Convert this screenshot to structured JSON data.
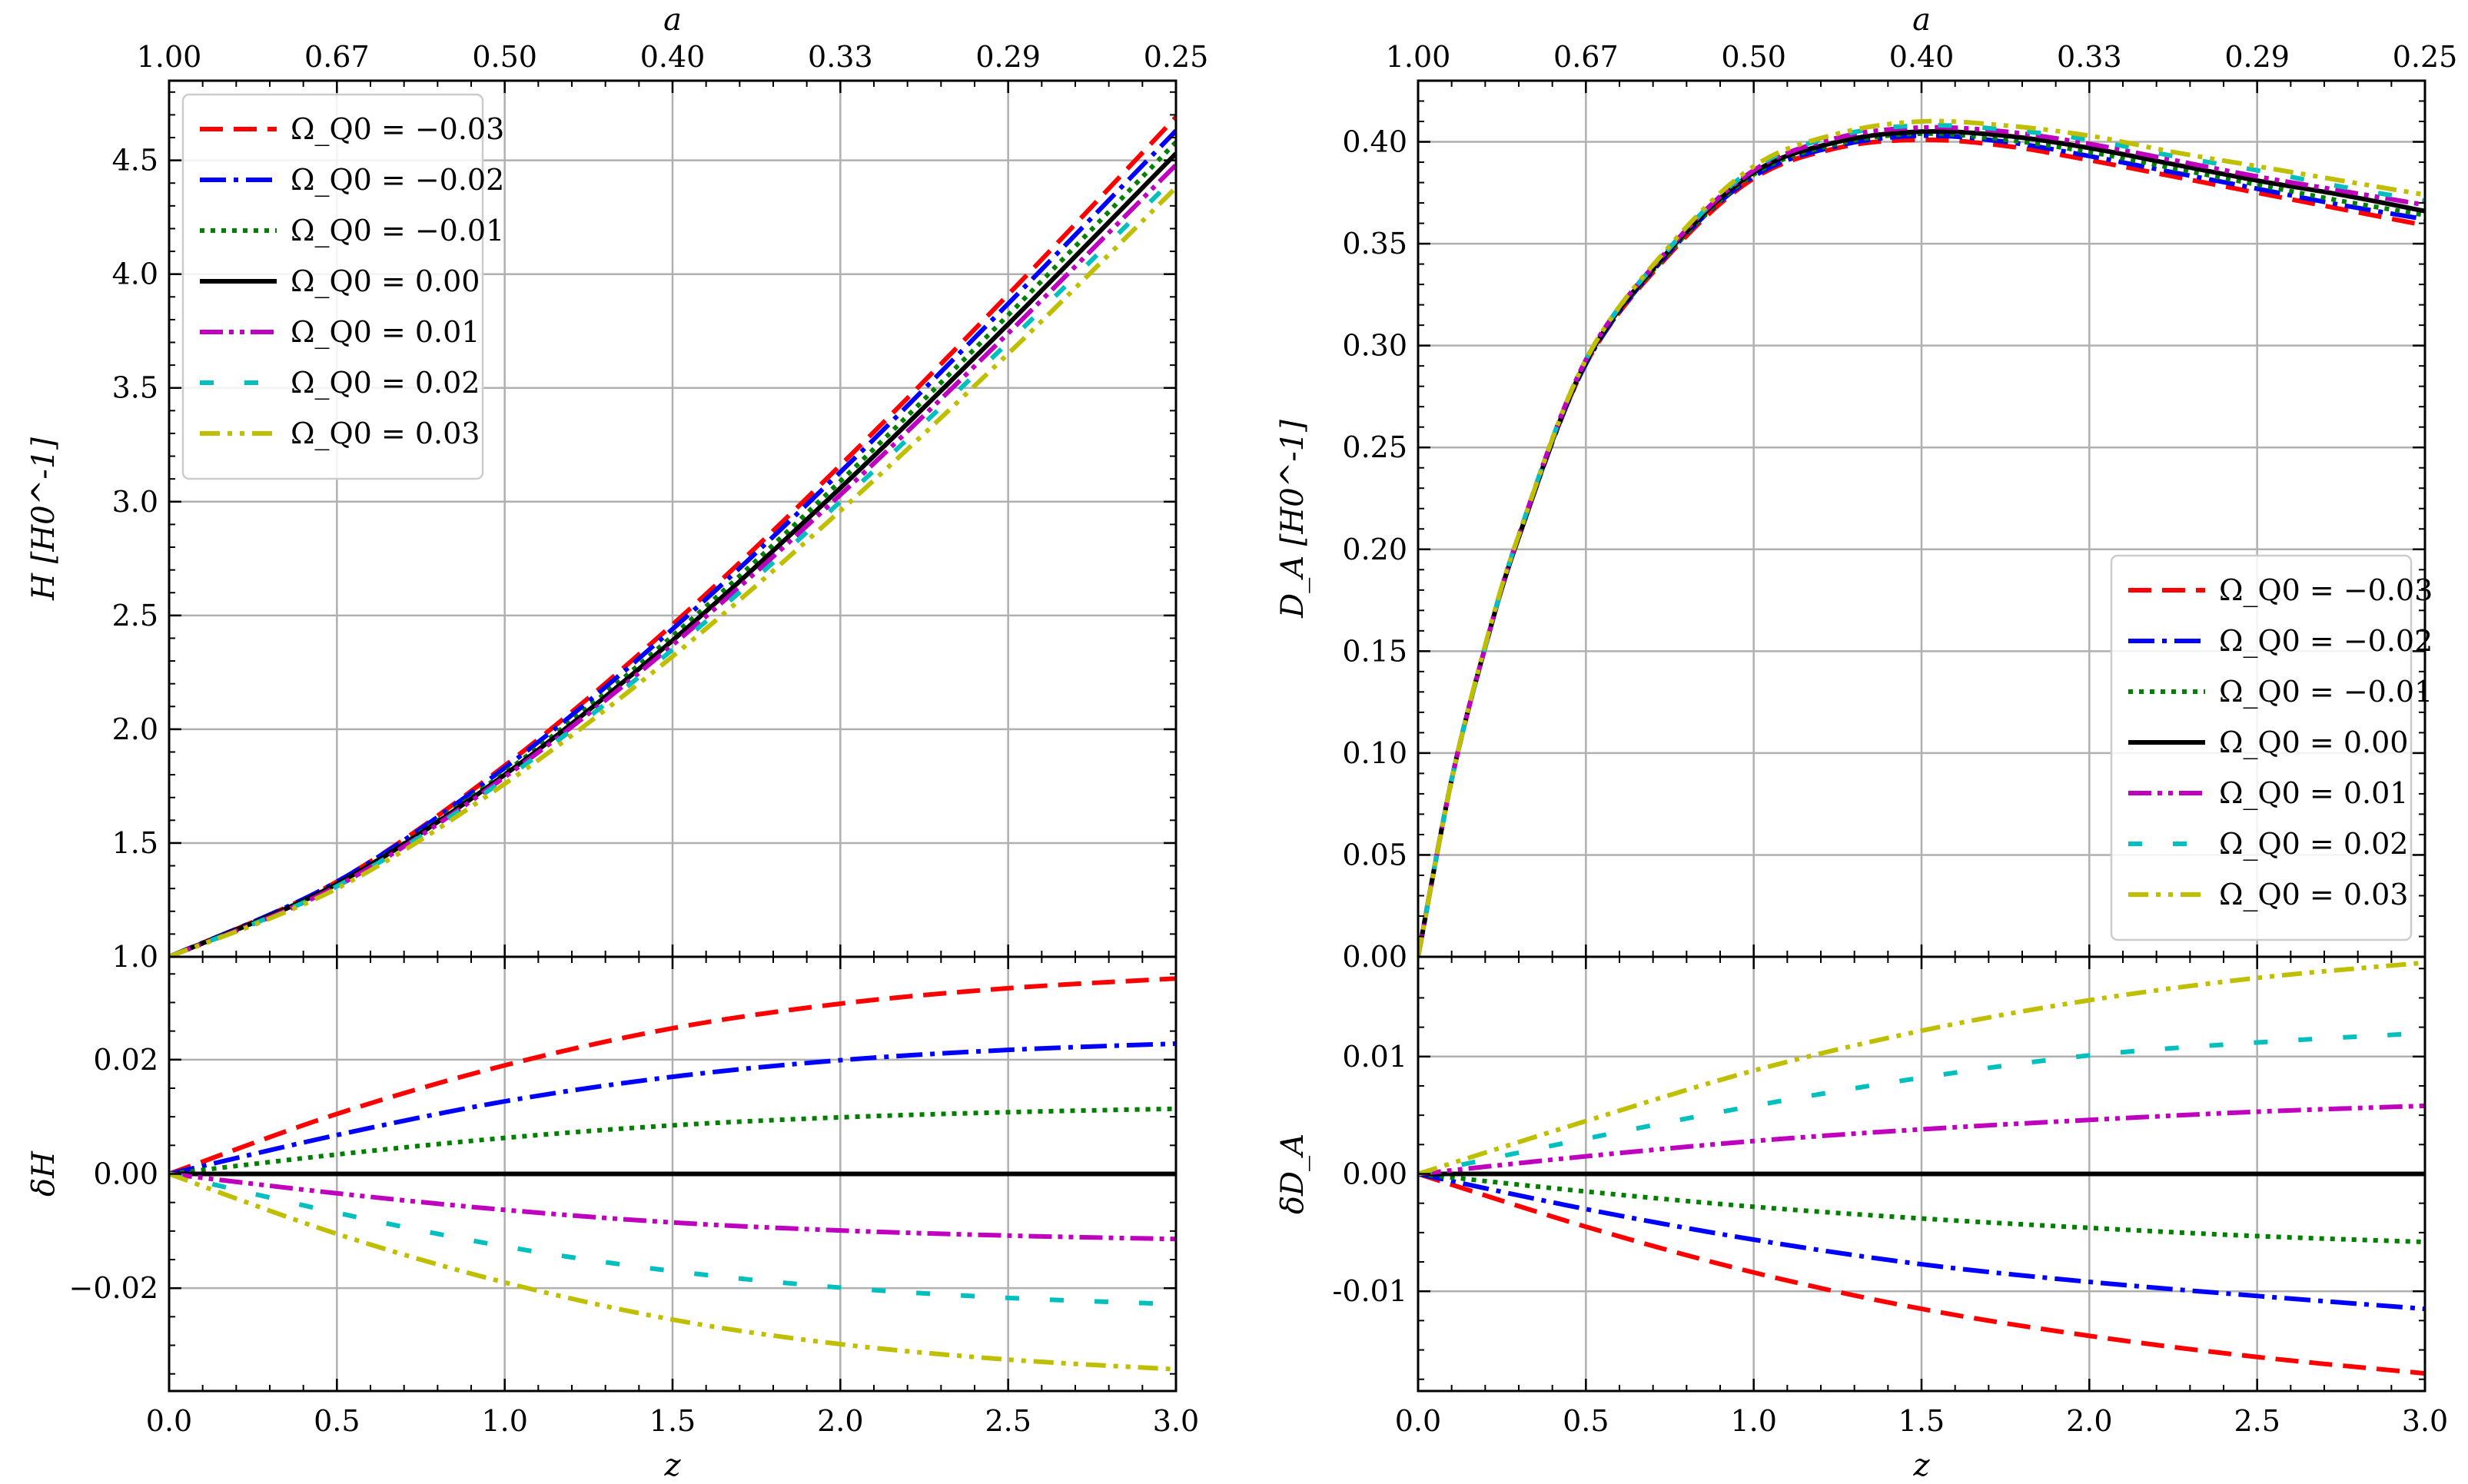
{
  "colors": {
    "m0.03": "#ff0000",
    "m0.02": "#0000ff",
    "m0.01": "#008000",
    "p0.00": "#000000",
    "p0.01": "#bf00bf",
    "p0.02": "#00bfbf",
    "p0.03": "#bfbf00"
  },
  "legend_labels": [
    "Ω_Q0 = −0.03",
    "Ω_Q0 = −0.02",
    "Ω_Q0 = −0.01",
    "Ω_Q0 = 0.00",
    "Ω_Q0 = 0.01",
    "Ω_Q0 = 0.02",
    "Ω_Q0 = 0.03"
  ],
  "chart_data": [
    {
      "id": "H-top",
      "type": "line",
      "xlabel": "",
      "ylabel": "H [H0^-1]",
      "xlim": [
        0,
        3
      ],
      "ylim": [
        1.0,
        4.85
      ],
      "grid": true,
      "legend_placement": "upper-left",
      "top_axis": {
        "label": "a",
        "ticks": [
          "1.00",
          "0.67",
          "0.50",
          "0.40",
          "0.33",
          "0.29",
          "0.25"
        ]
      },
      "x": [
        0,
        0.5,
        1.0,
        1.5,
        2.0,
        2.5,
        3.0
      ],
      "series": [
        {
          "name": "Ω_Q0 = −0.03",
          "color": "#ff0000",
          "dash": "dash",
          "values": [
            1.0,
            1.33,
            1.84,
            2.46,
            3.16,
            3.91,
            4.69
          ]
        },
        {
          "name": "Ω_Q0 = −0.02",
          "color": "#0000ff",
          "dash": "dashdot",
          "values": [
            1.0,
            1.33,
            1.83,
            2.44,
            3.13,
            3.87,
            4.63
          ]
        },
        {
          "name": "Ω_Q0 = −0.01",
          "color": "#008000",
          "dash": "dot",
          "values": [
            1.0,
            1.32,
            1.81,
            2.41,
            3.09,
            3.82,
            4.58
          ]
        },
        {
          "name": "Ω_Q0 = 0.00",
          "color": "#000000",
          "dash": "solid",
          "values": [
            1.0,
            1.32,
            1.8,
            2.39,
            3.06,
            3.78,
            4.53
          ]
        },
        {
          "name": "Ω_Q0 = 0.01",
          "color": "#bf00bf",
          "dash": "dashdot2",
          "values": [
            1.0,
            1.31,
            1.79,
            2.37,
            3.03,
            3.74,
            4.48
          ]
        },
        {
          "name": "Ω_Q0 = 0.02",
          "color": "#00bfbf",
          "dash": "sparse",
          "values": [
            1.0,
            1.31,
            1.78,
            2.35,
            3.0,
            3.7,
            4.43
          ]
        },
        {
          "name": "Ω_Q0 = 0.03",
          "color": "#bfbf00",
          "dash": "dashdotdot",
          "values": [
            1.0,
            1.3,
            1.76,
            2.32,
            2.96,
            3.65,
            4.38
          ]
        }
      ]
    },
    {
      "id": "H-bottom",
      "type": "line",
      "xlabel": "z",
      "ylabel": "δH",
      "xlim": [
        0,
        3
      ],
      "ylim": [
        -0.038,
        0.038
      ],
      "grid": true,
      "x": [
        0,
        0.5,
        1.0,
        1.5,
        2.0,
        2.5,
        3.0
      ],
      "series": [
        {
          "name": "Ω_Q0 = −0.03",
          "color": "#ff0000",
          "dash": "dash",
          "values": [
            0,
            0.0105,
            0.019,
            0.0255,
            0.0298,
            0.0325,
            0.0342
          ]
        },
        {
          "name": "Ω_Q0 = −0.02",
          "color": "#0000ff",
          "dash": "dashdot",
          "values": [
            0,
            0.0068,
            0.0127,
            0.017,
            0.0199,
            0.0217,
            0.0228
          ]
        },
        {
          "name": "Ω_Q0 = −0.01",
          "color": "#008000",
          "dash": "dot",
          "values": [
            0,
            0.0034,
            0.0063,
            0.0085,
            0.0099,
            0.0108,
            0.0114
          ]
        },
        {
          "name": "Ω_Q0 = 0.00",
          "color": "#000000",
          "dash": "solid",
          "values": [
            0,
            0,
            0,
            0,
            0,
            0,
            0
          ]
        },
        {
          "name": "Ω_Q0 = 0.01",
          "color": "#bf00bf",
          "dash": "dashdot2",
          "values": [
            0,
            -0.0034,
            -0.0063,
            -0.0085,
            -0.0099,
            -0.0108,
            -0.0114
          ]
        },
        {
          "name": "Ω_Q0 = 0.02",
          "color": "#00bfbf",
          "dash": "sparse",
          "values": [
            0,
            -0.0068,
            -0.0127,
            -0.017,
            -0.0199,
            -0.0217,
            -0.0228
          ]
        },
        {
          "name": "Ω_Q0 = 0.03",
          "color": "#bfbf00",
          "dash": "dashdotdot",
          "values": [
            0,
            -0.0105,
            -0.019,
            -0.0255,
            -0.0298,
            -0.0325,
            -0.0342
          ]
        }
      ]
    },
    {
      "id": "DA-top",
      "type": "line",
      "xlabel": "",
      "ylabel": "D_A [H0^-1]",
      "xlim": [
        0,
        3
      ],
      "ylim": [
        0.0,
        0.43
      ],
      "grid": true,
      "legend_placement": "lower-right",
      "top_axis": {
        "label": "a",
        "ticks": [
          "1.00",
          "0.67",
          "0.50",
          "0.40",
          "0.33",
          "0.29",
          "0.25"
        ]
      },
      "x": [
        0,
        0.1,
        0.2,
        0.3,
        0.5,
        0.75,
        1.0,
        1.25,
        1.5,
        1.75,
        2.0,
        2.25,
        2.5,
        2.75,
        3.0
      ],
      "series": [
        {
          "name": "Ω_Q0 = −0.03",
          "color": "#ff0000",
          "dash": "dash",
          "values": [
            0,
            0.087,
            0.152,
            0.206,
            0.291,
            0.345,
            0.382,
            0.397,
            0.401,
            0.398,
            0.391,
            0.383,
            0.375,
            0.367,
            0.359
          ]
        },
        {
          "name": "Ω_Q0 = −0.02",
          "color": "#0000ff",
          "dash": "dashdot",
          "values": [
            0,
            0.087,
            0.152,
            0.206,
            0.291,
            0.346,
            0.383,
            0.398,
            0.403,
            0.4,
            0.393,
            0.385,
            0.377,
            0.369,
            0.362
          ]
        },
        {
          "name": "Ω_Q0 = −0.01",
          "color": "#008000",
          "dash": "dot",
          "values": [
            0,
            0.087,
            0.152,
            0.206,
            0.292,
            0.346,
            0.384,
            0.399,
            0.404,
            0.401,
            0.395,
            0.387,
            0.379,
            0.371,
            0.364
          ]
        },
        {
          "name": "Ω_Q0 = 0.00",
          "color": "#000000",
          "dash": "solid",
          "values": [
            0,
            0.087,
            0.152,
            0.206,
            0.292,
            0.347,
            0.385,
            0.4,
            0.405,
            0.403,
            0.397,
            0.389,
            0.381,
            0.374,
            0.366
          ]
        },
        {
          "name": "Ω_Q0 = 0.01",
          "color": "#bf00bf",
          "dash": "dashdot2",
          "values": [
            0,
            0.087,
            0.152,
            0.207,
            0.293,
            0.348,
            0.386,
            0.402,
            0.407,
            0.405,
            0.399,
            0.391,
            0.383,
            0.376,
            0.369
          ]
        },
        {
          "name": "Ω_Q0 = 0.02",
          "color": "#00bfbf",
          "dash": "sparse",
          "values": [
            0,
            0.087,
            0.152,
            0.207,
            0.293,
            0.348,
            0.387,
            0.403,
            0.408,
            0.406,
            0.401,
            0.393,
            0.386,
            0.378,
            0.371
          ]
        },
        {
          "name": "Ω_Q0 = 0.03",
          "color": "#bfbf00",
          "dash": "dashdotdot",
          "values": [
            0,
            0.087,
            0.153,
            0.207,
            0.293,
            0.349,
            0.388,
            0.404,
            0.41,
            0.408,
            0.403,
            0.395,
            0.388,
            0.381,
            0.374
          ]
        }
      ]
    },
    {
      "id": "DA-bottom",
      "type": "line",
      "xlabel": "z",
      "ylabel": "δD_A",
      "xlim": [
        0,
        3
      ],
      "ylim": [
        -0.0185,
        0.0185
      ],
      "grid": true,
      "x": [
        0,
        0.5,
        1.0,
        1.5,
        2.0,
        2.5,
        3.0
      ],
      "series": [
        {
          "name": "Ω_Q0 = −0.03",
          "color": "#ff0000",
          "dash": "dash",
          "values": [
            0,
            -0.0045,
            -0.0084,
            -0.0115,
            -0.0138,
            -0.0156,
            -0.017
          ]
        },
        {
          "name": "Ω_Q0 = −0.02",
          "color": "#0000ff",
          "dash": "dashdot",
          "values": [
            0,
            -0.003,
            -0.0056,
            -0.0077,
            -0.0092,
            -0.0104,
            -0.0115
          ]
        },
        {
          "name": "Ω_Q0 = −0.01",
          "color": "#008000",
          "dash": "dot",
          "values": [
            0,
            -0.0015,
            -0.0028,
            -0.0038,
            -0.0046,
            -0.0053,
            -0.0058
          ]
        },
        {
          "name": "Ω_Q0 = 0.00",
          "color": "#000000",
          "dash": "solid",
          "values": [
            0,
            0,
            0,
            0,
            0,
            0,
            0
          ]
        },
        {
          "name": "Ω_Q0 = 0.01",
          "color": "#bf00bf",
          "dash": "dashdot2",
          "values": [
            0,
            0.0015,
            0.0028,
            0.0038,
            0.0046,
            0.0053,
            0.0058
          ]
        },
        {
          "name": "Ω_Q0 = 0.02",
          "color": "#00bfbf",
          "dash": "sparse",
          "values": [
            0,
            0.003,
            0.0058,
            0.0082,
            0.0101,
            0.0112,
            0.012
          ]
        },
        {
          "name": "Ω_Q0 = 0.03",
          "color": "#bfbf00",
          "dash": "dashdotdot",
          "values": [
            0,
            0.0045,
            0.0088,
            0.0122,
            0.0148,
            0.0167,
            0.018
          ]
        }
      ]
    }
  ],
  "ticks": {
    "x": [
      "0.0",
      "0.5",
      "1.0",
      "1.5",
      "2.0",
      "2.5",
      "3.0"
    ],
    "H_top_y": [
      "1.0",
      "1.5",
      "2.0",
      "2.5",
      "3.0",
      "3.5",
      "4.0",
      "4.5"
    ],
    "H_bottom_y": [
      "0.02",
      "0.00",
      "−0.02"
    ],
    "DA_top_y": [
      "0.00",
      "0.05",
      "0.10",
      "0.15",
      "0.20",
      "0.25",
      "0.30",
      "0.35",
      "0.40"
    ],
    "DA_bottom_y": [
      "0.01",
      "0.00",
      "-0.01"
    ]
  }
}
